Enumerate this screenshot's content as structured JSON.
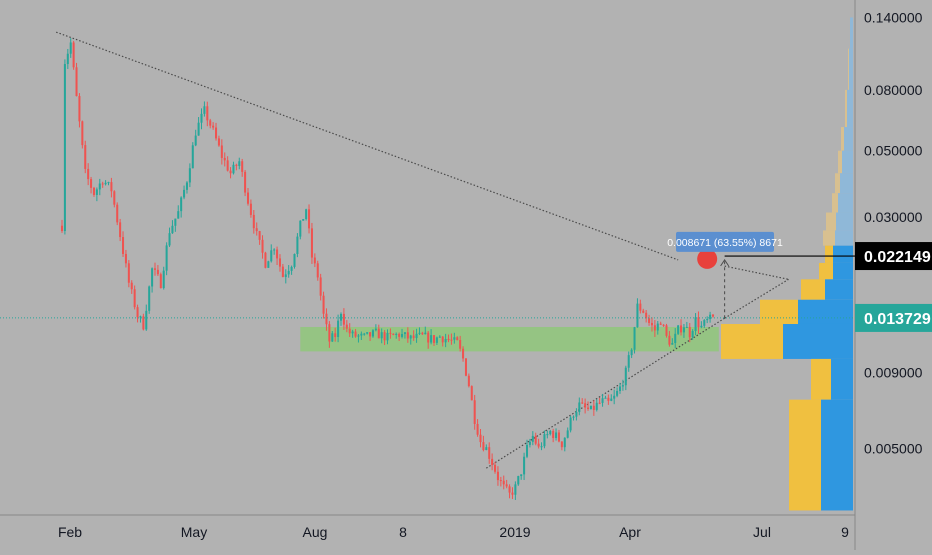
{
  "colors": {
    "background": "#b2b2b2",
    "up": "#26a69a",
    "down": "#ef5350",
    "tick_text": "#131722",
    "axis_line": "#888888",
    "trendline": "#4a4a4a",
    "range_box": "#8fc77a",
    "vp_buy": "#2f97e0",
    "vp_sell": "#f0c040",
    "vp_buy_faded": "#8fb8d8",
    "vp_sell_faded": "#d8c090",
    "last_price_bg": "#26a69a",
    "target_label_bg": "#000000",
    "measure_label_bg": "#5b8fd0",
    "marker_red": "#e8413c"
  },
  "chart_data": {
    "type": "candlestick",
    "title": "",
    "scale": "log",
    "y_ticks": [
      "0.140000",
      "0.080000",
      "0.050000",
      "0.030000",
      "0.009000",
      "0.005000"
    ],
    "x_ticks": [
      "Feb",
      "May",
      "Aug",
      "8",
      "2019",
      "Apr",
      "Jul",
      "9"
    ],
    "price_labels": [
      {
        "label": "0.022149",
        "value": 0.022149,
        "style": "target"
      },
      {
        "label": "0.013729",
        "value": 0.013729,
        "style": "last"
      }
    ],
    "measure_label": "0.008671 (63.55%) 8671",
    "price_path": [
      [
        0,
        0.028
      ],
      [
        1,
        0.1
      ],
      [
        3,
        0.115
      ],
      [
        5,
        0.075
      ],
      [
        8,
        0.042
      ],
      [
        11,
        0.036
      ],
      [
        14,
        0.04
      ],
      [
        17,
        0.037
      ],
      [
        20,
        0.026
      ],
      [
        23,
        0.018
      ],
      [
        26,
        0.014
      ],
      [
        28,
        0.013
      ],
      [
        31,
        0.02
      ],
      [
        34,
        0.018
      ],
      [
        37,
        0.027
      ],
      [
        40,
        0.031
      ],
      [
        43,
        0.04
      ],
      [
        46,
        0.058
      ],
      [
        49,
        0.068
      ],
      [
        52,
        0.058
      ],
      [
        55,
        0.048
      ],
      [
        58,
        0.042
      ],
      [
        61,
        0.046
      ],
      [
        64,
        0.034
      ],
      [
        67,
        0.026
      ],
      [
        70,
        0.021
      ],
      [
        73,
        0.024
      ],
      [
        76,
        0.019
      ],
      [
        79,
        0.021
      ],
      [
        82,
        0.028
      ],
      [
        84,
        0.032
      ],
      [
        86,
        0.022
      ],
      [
        88,
        0.019
      ],
      [
        90,
        0.014
      ],
      [
        92,
        0.0115
      ],
      [
        94,
        0.012
      ],
      [
        96,
        0.0145
      ],
      [
        98,
        0.0125
      ],
      [
        100,
        0.012
      ],
      [
        104,
        0.0118
      ],
      [
        108,
        0.0122
      ],
      [
        112,
        0.0118
      ],
      [
        116,
        0.0121
      ],
      [
        120,
        0.0117
      ],
      [
        124,
        0.0119
      ],
      [
        128,
        0.0116
      ],
      [
        130,
        0.0119
      ],
      [
        134,
        0.0115
      ],
      [
        136,
        0.0113
      ],
      [
        138,
        0.01
      ],
      [
        140,
        0.0082
      ],
      [
        142,
        0.0063
      ],
      [
        144,
        0.0053
      ],
      [
        146,
        0.005
      ],
      [
        148,
        0.0045
      ],
      [
        150,
        0.004
      ],
      [
        152,
        0.0037
      ],
      [
        154,
        0.0035
      ],
      [
        156,
        0.0037
      ],
      [
        158,
        0.0042
      ],
      [
        160,
        0.005
      ],
      [
        162,
        0.0055
      ],
      [
        164,
        0.005
      ],
      [
        166,
        0.0054
      ],
      [
        168,
        0.0057
      ],
      [
        170,
        0.0055
      ],
      [
        172,
        0.0052
      ],
      [
        174,
        0.0058
      ],
      [
        176,
        0.0066
      ],
      [
        178,
        0.007
      ],
      [
        180,
        0.0068
      ],
      [
        182,
        0.0067
      ],
      [
        184,
        0.007
      ],
      [
        186,
        0.0072
      ],
      [
        188,
        0.0071
      ],
      [
        190,
        0.0074
      ],
      [
        192,
        0.008
      ],
      [
        194,
        0.009
      ],
      [
        196,
        0.011
      ],
      [
        198,
        0.015
      ],
      [
        200,
        0.0145
      ],
      [
        202,
        0.0132
      ],
      [
        204,
        0.0125
      ],
      [
        206,
        0.0135
      ],
      [
        208,
        0.0118
      ],
      [
        210,
        0.0112
      ],
      [
        212,
        0.0125
      ],
      [
        214,
        0.013
      ],
      [
        216,
        0.0122
      ],
      [
        218,
        0.0135
      ],
      [
        220,
        0.0128
      ],
      [
        222,
        0.0134
      ],
      [
        224,
        0.0137
      ]
    ],
    "range_zone": {
      "x_start": 82,
      "x_end": 226,
      "y_low": 0.0106,
      "y_high": 0.0128
    },
    "trendlines": [
      {
        "x1": -2,
        "y1": 0.125,
        "x2": 212,
        "y2": 0.0215
      },
      {
        "x1": 146,
        "y1": 0.0043,
        "x2": 228,
        "y2": 0.0137
      },
      {
        "x1": 228,
        "y1": 0.0137,
        "x2": 250,
        "y2": 0.0185
      },
      {
        "x1": 228,
        "y1": 0.0205,
        "x2": 250,
        "y2": 0.0185
      }
    ],
    "measure": {
      "x": 228,
      "from": 0.0137,
      "to": 0.0215,
      "marker_x": 222
    },
    "volume_profile": {
      "bins": [
        {
          "y_high": 0.14,
          "y_low": 0.11,
          "sell": 0,
          "buy": 3
        },
        {
          "y_high": 0.11,
          "y_low": 0.08,
          "sell": 1,
          "buy": 4
        },
        {
          "y_high": 0.08,
          "y_low": 0.06,
          "sell": 2,
          "buy": 6
        },
        {
          "y_high": 0.06,
          "y_low": 0.05,
          "sell": 3,
          "buy": 9
        },
        {
          "y_high": 0.05,
          "y_low": 0.042,
          "sell": 4,
          "buy": 11
        },
        {
          "y_high": 0.042,
          "y_low": 0.036,
          "sell": 5,
          "buy": 13
        },
        {
          "y_high": 0.036,
          "y_low": 0.031,
          "sell": 6,
          "buy": 15
        },
        {
          "y_high": 0.031,
          "y_low": 0.027,
          "sell": 10,
          "buy": 17
        },
        {
          "y_high": 0.027,
          "y_low": 0.024,
          "sell": 12,
          "buy": 18
        },
        {
          "y_high": 0.024,
          "y_low": 0.021,
          "sell": 8,
          "buy": 20
        },
        {
          "y_high": 0.021,
          "y_low": 0.0185,
          "sell": 14,
          "buy": 20
        },
        {
          "y_high": 0.0185,
          "y_low": 0.0158,
          "sell": 24,
          "buy": 28
        },
        {
          "y_high": 0.0158,
          "y_low": 0.0131,
          "sell": 38,
          "buy": 55
        },
        {
          "y_high": 0.0131,
          "y_low": 0.01,
          "sell": 62,
          "buy": 70
        },
        {
          "y_high": 0.01,
          "y_low": 0.0073,
          "sell": 20,
          "buy": 22
        },
        {
          "y_high": 0.0073,
          "y_low": 0.0031,
          "sell": 32,
          "buy": 32
        }
      ]
    }
  }
}
